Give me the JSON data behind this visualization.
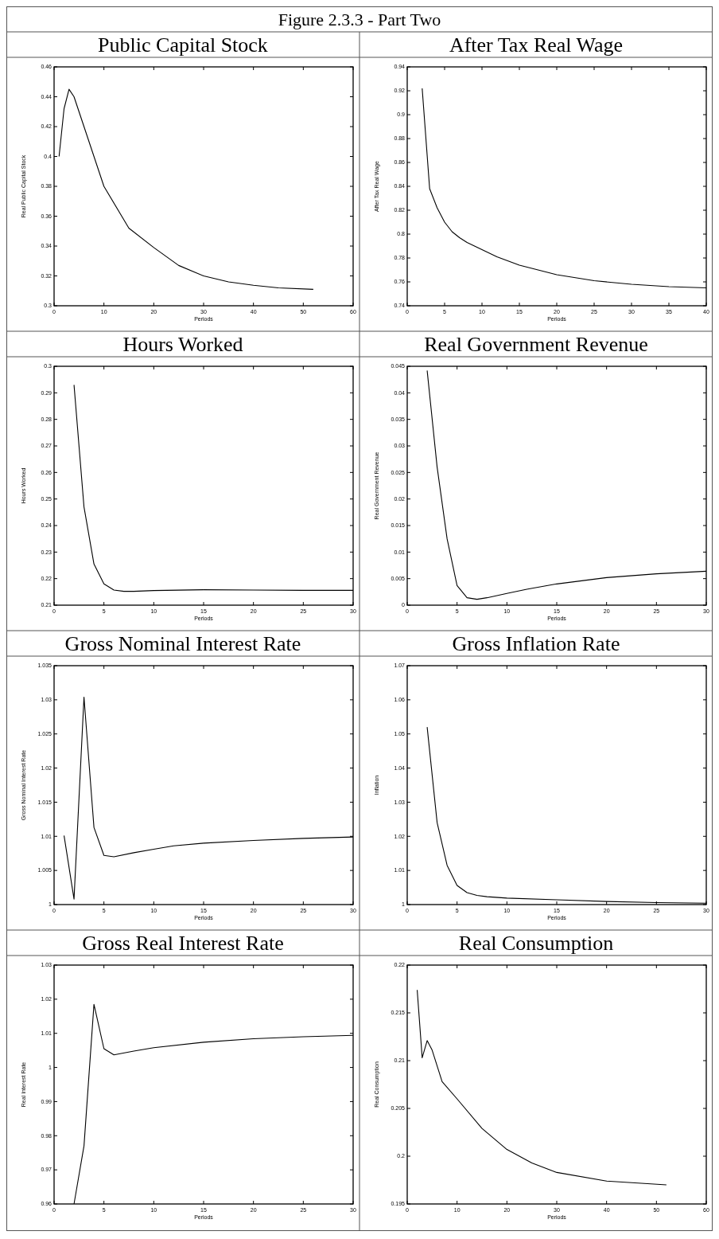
{
  "chart_data": [
    {
      "type": "line",
      "title": "Public Capital Stock",
      "annotations": [
        "Figure 2.3.3 - Part Two"
      ],
      "xlabel": "Periods",
      "ylabel": "Real Public Capital Stock",
      "color": "#000000",
      "x": [
        1,
        2,
        3,
        4,
        5,
        6,
        7,
        8,
        10,
        15,
        20,
        25,
        30,
        35,
        40,
        45,
        52
      ],
      "values": [
        0.4,
        0.432,
        0.445,
        0.44,
        0.43,
        0.42,
        0.41,
        0.4,
        0.38,
        0.352,
        0.339,
        0.327,
        0.32,
        0.316,
        0.3137,
        0.312,
        0.311
      ],
      "xlim": [
        0,
        60
      ],
      "xticks": [
        0,
        10,
        20,
        30,
        40,
        50,
        60
      ],
      "ylim": [
        0.3,
        0.46
      ],
      "yticks": [
        0.3,
        0.32,
        0.34,
        0.36,
        0.38,
        0.4,
        0.42,
        0.44,
        0.46
      ]
    },
    {
      "type": "line",
      "title": "After Tax Real Wage",
      "xlabel": "Periods",
      "ylabel": "After Tax Real Wage",
      "color": "#000000",
      "x": [
        2,
        3,
        4,
        5,
        6,
        7,
        8,
        10,
        12,
        15,
        20,
        25,
        30,
        35,
        40
      ],
      "values": [
        0.922,
        0.838,
        0.822,
        0.81,
        0.802,
        0.797,
        0.793,
        0.787,
        0.781,
        0.774,
        0.766,
        0.761,
        0.758,
        0.756,
        0.755
      ],
      "xlim": [
        0,
        40
      ],
      "xticks": [
        0,
        5,
        10,
        15,
        20,
        25,
        30,
        35,
        40
      ],
      "ylim": [
        0.74,
        0.94
      ],
      "yticks": [
        0.74,
        0.76,
        0.78,
        0.8,
        0.82,
        0.84,
        0.86,
        0.88,
        0.9,
        0.92,
        0.94
      ]
    },
    {
      "type": "line",
      "title": "Hours Worked",
      "xlabel": "Periods",
      "ylabel": "Hours Worked",
      "color": "#000000",
      "x": [
        2,
        3,
        4,
        5,
        6,
        7,
        8,
        10,
        15,
        20,
        25,
        30
      ],
      "values": [
        0.293,
        0.247,
        0.2255,
        0.218,
        0.2157,
        0.2152,
        0.2152,
        0.2155,
        0.2158,
        0.2157,
        0.2156,
        0.2156
      ],
      "xlim": [
        0,
        30
      ],
      "xticks": [
        0,
        5,
        10,
        15,
        20,
        25,
        30
      ],
      "ylim": [
        0.21,
        0.3
      ],
      "yticks": [
        0.21,
        0.22,
        0.23,
        0.24,
        0.25,
        0.26,
        0.27,
        0.28,
        0.29,
        0.3
      ]
    },
    {
      "type": "line",
      "title": "Real Government Revenue",
      "xlabel": "Periods",
      "ylabel": "Real Government Revenue",
      "color": "#000000",
      "x": [
        2,
        3,
        4,
        5,
        6,
        7,
        8,
        10,
        12,
        15,
        20,
        25,
        30
      ],
      "values": [
        0.0442,
        0.026,
        0.0125,
        0.0037,
        0.0014,
        0.0011,
        0.0014,
        0.0022,
        0.003,
        0.004,
        0.0052,
        0.0059,
        0.0064
      ],
      "xlim": [
        0,
        30
      ],
      "xticks": [
        0,
        5,
        10,
        15,
        20,
        25,
        30
      ],
      "ylim": [
        0,
        0.045
      ],
      "yticks": [
        0,
        0.005,
        0.01,
        0.015,
        0.02,
        0.025,
        0.03,
        0.035,
        0.04,
        0.045
      ]
    },
    {
      "type": "line",
      "title": "Gross Nominal Interest Rate",
      "xlabel": "Periods",
      "ylabel": "Gross Nominal Interest Rate",
      "color": "#000000",
      "x": [
        1,
        2,
        3,
        4,
        5,
        6,
        8,
        10,
        12,
        15,
        20,
        25,
        30
      ],
      "values": [
        1.0101,
        1.0008,
        1.0304,
        1.0113,
        1.0072,
        1.007,
        1.0076,
        1.0081,
        1.0086,
        1.009,
        1.0094,
        1.0097,
        1.0099
      ],
      "xlim": [
        0,
        30
      ],
      "xticks": [
        0,
        5,
        10,
        15,
        20,
        25,
        30
      ],
      "ylim": [
        1,
        1.035
      ],
      "yticks": [
        1,
        1.005,
        1.01,
        1.015,
        1.02,
        1.025,
        1.03,
        1.035
      ]
    },
    {
      "type": "line",
      "title": "Gross Inflation Rate",
      "xlabel": "Periods",
      "ylabel": "Inflation",
      "color": "#000000",
      "x": [
        2,
        3,
        4,
        5,
        6,
        7,
        8,
        10,
        15,
        20,
        25,
        30
      ],
      "values": [
        1.052,
        1.024,
        1.0115,
        1.0056,
        1.0035,
        1.0027,
        1.0023,
        1.0019,
        1.0014,
        1.0009,
        1.0006,
        1.0004
      ],
      "xlim": [
        0,
        30
      ],
      "xticks": [
        0,
        5,
        10,
        15,
        20,
        25,
        30
      ],
      "ylim": [
        1,
        1.07
      ],
      "yticks": [
        1,
        1.01,
        1.02,
        1.03,
        1.04,
        1.05,
        1.06,
        1.07
      ]
    },
    {
      "type": "line",
      "title": "Gross Real Interest Rate",
      "xlabel": "Periods",
      "ylabel": "Real Interest Rate",
      "color": "#000000",
      "x": [
        2,
        3,
        4,
        5,
        6,
        8,
        10,
        15,
        20,
        25,
        30
      ],
      "values": [
        0.96,
        0.977,
        1.0185,
        1.0055,
        1.0037,
        1.0048,
        1.0058,
        1.0074,
        1.0084,
        1.009,
        1.0094
      ],
      "xlim": [
        0,
        30
      ],
      "xticks": [
        0,
        5,
        10,
        15,
        20,
        25,
        30
      ],
      "ylim": [
        0.96,
        1.03
      ],
      "yticks": [
        0.96,
        0.97,
        0.98,
        0.99,
        1,
        1.01,
        1.02,
        1.03
      ]
    },
    {
      "type": "line",
      "title": "Real Consumption",
      "xlabel": "Periods",
      "ylabel": "Real Consumption",
      "color": "#000000",
      "x": [
        2,
        3,
        4,
        5,
        7,
        10,
        15,
        20,
        25,
        30,
        40,
        52
      ],
      "values": [
        0.2174,
        0.2103,
        0.2121,
        0.2111,
        0.2078,
        0.206,
        0.2029,
        0.2007,
        0.1993,
        0.1983,
        0.1974,
        0.197
      ],
      "xlim": [
        0,
        60
      ],
      "xticks": [
        0,
        10,
        20,
        30,
        40,
        50,
        60
      ],
      "ylim": [
        0.195,
        0.22
      ],
      "yticks": [
        0.195,
        0.2,
        0.205,
        0.21,
        0.215,
        0.22
      ]
    }
  ]
}
